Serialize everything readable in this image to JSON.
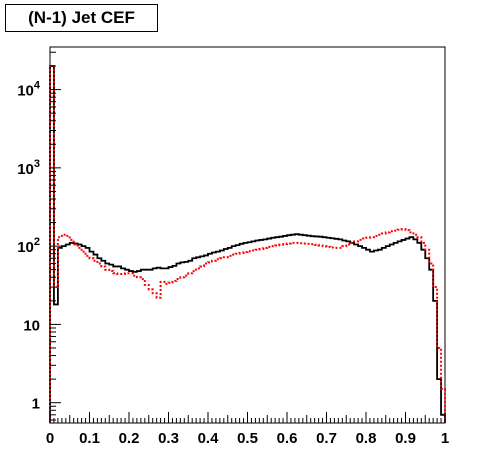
{
  "chart_data": {
    "type": "line",
    "title": "(N-1) Jet CEF",
    "xlabel": "",
    "ylabel": "",
    "xlim": [
      0,
      1
    ],
    "ylim": [
      0.55,
      35000
    ],
    "y_scale": "log",
    "grid": false,
    "legend": "none",
    "x_ticks": [
      "0",
      "0.1",
      "0.2",
      "0.3",
      "0.4",
      "0.5",
      "0.6",
      "0.7",
      "0.8",
      "0.9",
      "1"
    ],
    "y_ticks": [
      {
        "value": 1,
        "base": "1",
        "exp": ""
      },
      {
        "value": 10,
        "base": "10",
        "exp": ""
      },
      {
        "value": 100,
        "base": "10",
        "exp": "2"
      },
      {
        "value": 1000,
        "base": "10",
        "exp": "3"
      },
      {
        "value": 10000,
        "base": "10",
        "exp": "4"
      }
    ],
    "series": [
      {
        "style": "solid",
        "color": "#000000",
        "values": [
          20000,
          18,
          95,
          100,
          105,
          110,
          108,
          105,
          100,
          95,
          85,
          78,
          70,
          65,
          60,
          58,
          55,
          55,
          52,
          50,
          48,
          47,
          48,
          50,
          50,
          50,
          52,
          53,
          52,
          52,
          54,
          56,
          60,
          62,
          63,
          65,
          70,
          72,
          74,
          76,
          80,
          83,
          85,
          88,
          92,
          95,
          100,
          103,
          107,
          110,
          112,
          115,
          118,
          120,
          122,
          125,
          128,
          130,
          132,
          135,
          138,
          140,
          142,
          140,
          138,
          136,
          134,
          133,
          132,
          130,
          128,
          126,
          124,
          122,
          118,
          115,
          110,
          105,
          100,
          95,
          90,
          85,
          88,
          90,
          95,
          100,
          105,
          110,
          115,
          120,
          125,
          130,
          122,
          110,
          90,
          70,
          50,
          20,
          2,
          0.7
        ]
      },
      {
        "style": "dotted",
        "color": "#ff0000",
        "values": [
          20000,
          30,
          130,
          140,
          135,
          120,
          105,
          95,
          85,
          75,
          70,
          65,
          60,
          55,
          50,
          48,
          45,
          44,
          44,
          45,
          45,
          42,
          40,
          38,
          32,
          28,
          25,
          22,
          35,
          33,
          34,
          36,
          38,
          40,
          42,
          45,
          48,
          52,
          55,
          60,
          62,
          65,
          68,
          70,
          72,
          75,
          78,
          80,
          82,
          84,
          86,
          88,
          90,
          92,
          95,
          98,
          100,
          102,
          104,
          106,
          108,
          110,
          110,
          109,
          108,
          107,
          106,
          104,
          102,
          100,
          98,
          96,
          95,
          95,
          100,
          105,
          110,
          115,
          120,
          125,
          128,
          130,
          135,
          140,
          145,
          150,
          155,
          158,
          162,
          165,
          160,
          150,
          140,
          130,
          110,
          90,
          60,
          30,
          5,
          1.5
        ]
      }
    ]
  }
}
